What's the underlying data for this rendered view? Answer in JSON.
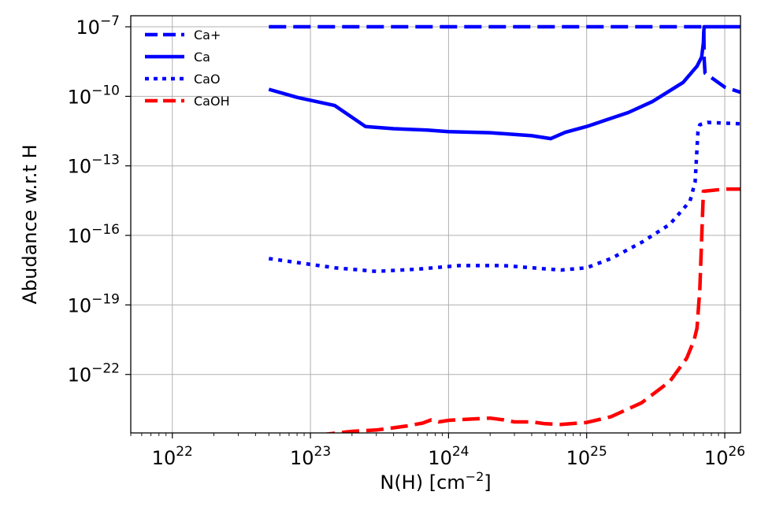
{
  "chart_data": {
    "type": "line",
    "title": "",
    "xlabel": "N(H) [cm",
    "xlabel_sup": "−2",
    "xlabel_end": "]",
    "ylabel": "Abudance w.r.t H",
    "x_scale": "log",
    "y_scale": "log",
    "xlim": [
      5e+21,
      1.3e+26
    ],
    "ylim": [
      3e-25,
      3e-07
    ],
    "grid": true,
    "legend_position": "top-left",
    "x_ticks": [
      {
        "value": 1e+22,
        "base": "10",
        "exp": "22"
      },
      {
        "value": 1e+23,
        "base": "10",
        "exp": "23"
      },
      {
        "value": 1e+24,
        "base": "10",
        "exp": "24"
      },
      {
        "value": 1e+25,
        "base": "10",
        "exp": "25"
      },
      {
        "value": 1e+26,
        "base": "10",
        "exp": "26"
      }
    ],
    "y_ticks": [
      {
        "value": 1e-07,
        "base": "10",
        "exp": "−7"
      },
      {
        "value": 1e-10,
        "base": "10",
        "exp": "−10"
      },
      {
        "value": 1e-13,
        "base": "10",
        "exp": "−13"
      },
      {
        "value": 1e-16,
        "base": "10",
        "exp": "−16"
      },
      {
        "value": 1e-19,
        "base": "10",
        "exp": "−19"
      },
      {
        "value": 1e-22,
        "base": "10",
        "exp": "−22"
      }
    ],
    "series": [
      {
        "name": "Ca+",
        "color": "#0000ff",
        "style": "dashed",
        "x": [
          5e+22,
          1e+24,
          1e+25,
          6.8e+25,
          7.05e+25,
          7.1e+25,
          7.2e+25,
          1e+26,
          1.3e+26
        ],
        "y": [
          1e-07,
          1e-07,
          1e-07,
          1e-07,
          9e-08,
          4e-09,
          1e-09,
          2.5e-10,
          1.5e-10
        ]
      },
      {
        "name": "Ca",
        "color": "#0000ff",
        "style": "solid",
        "x": [
          5e+22,
          8e+22,
          1.5e+23,
          2.5e+23,
          4e+23,
          7e+23,
          1e+24,
          2e+24,
          4e+24,
          5.5e+24,
          7e+24,
          1e+25,
          2e+25,
          3e+25,
          5e+25,
          6.3e+25,
          6.8e+25,
          7e+25,
          7.05e+25,
          7.1e+25,
          1.3e+26
        ],
        "y": [
          2e-10,
          9e-11,
          4e-11,
          5e-12,
          4e-12,
          3.5e-12,
          3e-12,
          2.7e-12,
          2e-12,
          1.5e-12,
          2.8e-12,
          5e-12,
          2e-11,
          6e-11,
          4e-10,
          2e-09,
          5e-09,
          2e-08,
          6e-08,
          1e-07,
          1e-07
        ]
      },
      {
        "name": "CaO",
        "color": "#0000ff",
        "style": "dotted",
        "x": [
          5e+22,
          1.5e+23,
          3e+23,
          6e+23,
          1.2e+24,
          2.5e+24,
          4e+24,
          6.5e+24,
          1e+25,
          1.5e+25,
          2.5e+25,
          4e+25,
          5.6e+25,
          6.1e+25,
          6.4e+25,
          6.6e+25,
          7.5e+25,
          1e+26,
          1.3e+26
        ],
        "y": [
          1e-17,
          4e-18,
          2.8e-18,
          3.5e-18,
          5e-18,
          5e-18,
          4e-18,
          3.2e-18,
          4e-18,
          1e-17,
          5e-17,
          3e-16,
          3e-15,
          2e-14,
          3e-12,
          6e-12,
          7.5e-12,
          7e-12,
          6.5e-12
        ]
      },
      {
        "name": "CaOH",
        "color": "#ff0000",
        "style": "dashed",
        "x": [
          5e+22,
          1.2e+23,
          2e+23,
          3e+23,
          4e+23,
          5e+23,
          6.5e+23,
          7.5e+23,
          8.5e+23,
          1e+24,
          1.5e+24,
          2e+24,
          2.5e+24,
          3e+24,
          4e+24,
          5e+24,
          6.5e+24,
          1e+25,
          1.5e+25,
          2.5e+25,
          4e+25,
          5.3e+25,
          6e+25,
          6.3e+25,
          6.6e+25,
          7e+25,
          1e+26,
          1.3e+26
        ],
        "y": [
          2e-25,
          2.5e-25,
          3.5e-25,
          4e-25,
          5e-25,
          6e-25,
          8e-25,
          1.1e-24,
          9e-25,
          1.05e-24,
          1.2e-24,
          1.3e-24,
          1.1e-24,
          9e-25,
          9e-25,
          7.5e-25,
          7e-25,
          8.5e-25,
          1.5e-24,
          6e-24,
          5e-23,
          5e-22,
          3e-21,
          1e-20,
          5e-19,
          8e-15,
          1e-14,
          1e-14
        ]
      }
    ]
  }
}
